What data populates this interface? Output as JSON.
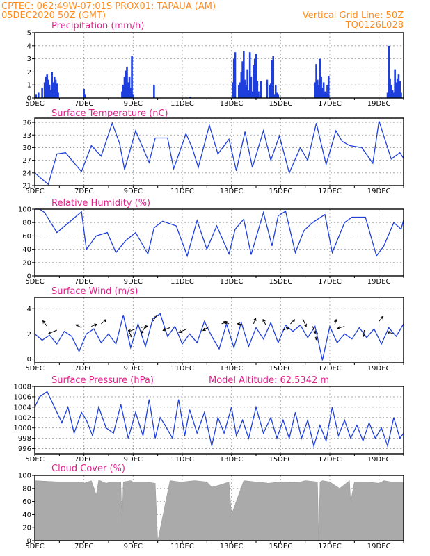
{
  "header": {
    "line1_left": "CPTEC:   062:49W-07:01S   PROX01: TAPAUA (AM)",
    "line2_left": "05DEC2020 50Z (GMT)",
    "line2_right": "Vertical Grid Line: 50Z",
    "line3_right": "TQ0126L028"
  },
  "colors": {
    "header": "#ff8a1c",
    "panel_title": "#e0208a",
    "series": "#1f3fdd",
    "cloud": "#aaaaaa",
    "wind_arrow": "#000000"
  },
  "x_labels": [
    "5DEC",
    "7DEC",
    "9DEC",
    "11DEC",
    "13DEC",
    "15DEC",
    "17DEC",
    "19DEC"
  ],
  "x_range_days": [
    5,
    20
  ],
  "chart_data": [
    {
      "id": "precip",
      "type": "bar",
      "title": "Precipitation (mm/h)",
      "ylim": [
        0,
        5
      ],
      "yticks": [
        "0",
        "1",
        "2",
        "3",
        "4",
        "5"
      ],
      "x": [
        5.05,
        5.15,
        5.3,
        5.4,
        5.45,
        5.5,
        5.55,
        5.6,
        5.65,
        5.7,
        5.75,
        5.8,
        5.85,
        5.9,
        5.95,
        7.0,
        7.05,
        8.55,
        8.6,
        8.65,
        8.7,
        8.75,
        8.8,
        8.85,
        8.9,
        8.95,
        9.0,
        9.85,
        11.3,
        13.05,
        13.1,
        13.15,
        13.3,
        13.35,
        13.4,
        13.45,
        13.5,
        13.55,
        13.6,
        13.65,
        13.7,
        13.75,
        13.8,
        13.85,
        13.9,
        13.95,
        14.0,
        14.05,
        14.1,
        14.2,
        14.45,
        14.55,
        14.6,
        14.65,
        14.7,
        14.75,
        14.8,
        14.85,
        14.9,
        16.4,
        16.45,
        16.5,
        16.55,
        16.6,
        16.65,
        16.7,
        16.75,
        16.8,
        16.85,
        16.9,
        16.95,
        19.35,
        19.4,
        19.45,
        19.5,
        19.55,
        19.6,
        19.65,
        19.7,
        19.75,
        19.8,
        19.85,
        19.9
      ],
      "values": [
        0.3,
        0.4,
        0.8,
        1.2,
        1.6,
        1.8,
        1.4,
        1.0,
        0.6,
        2.0,
        1.2,
        1.6,
        1.4,
        1.1,
        0.4,
        0.7,
        0.3,
        0.5,
        1.0,
        1.6,
        2.1,
        2.4,
        1.2,
        1.6,
        0.8,
        3.2,
        0.3,
        1.0,
        0.1,
        1.2,
        3.0,
        3.5,
        1.0,
        1.2,
        2.0,
        2.8,
        3.6,
        1.4,
        1.0,
        2.2,
        0.6,
        3.5,
        1.6,
        0.5,
        2.5,
        3.0,
        3.4,
        1.3,
        0.5,
        1.3,
        1.4,
        1.0,
        1.1,
        2.9,
        3.2,
        0.3,
        1.0,
        0.4,
        0.3,
        1.2,
        2.6,
        1.4,
        1.0,
        3.0,
        1.6,
        0.8,
        1.2,
        0.5,
        0.4,
        1.0,
        1.7,
        0.4,
        4.0,
        1.5,
        1.0,
        0.6,
        0.4,
        2.2,
        1.2,
        1.5,
        1.8,
        1.3,
        0.4
      ]
    },
    {
      "id": "temp",
      "type": "line",
      "title": "Surface Temperature (nC)",
      "ylim": [
        21,
        37
      ],
      "yticks": [
        "21",
        "24",
        "27",
        "30",
        "33",
        "36"
      ],
      "x": [
        5.0,
        5.3,
        5.55,
        5.9,
        6.25,
        6.9,
        7.3,
        7.7,
        8.15,
        8.45,
        8.65,
        9.1,
        9.65,
        9.9,
        10.4,
        10.65,
        11.15,
        11.4,
        11.65,
        12.1,
        12.45,
        12.9,
        13.2,
        13.55,
        13.85,
        14.3,
        14.6,
        14.95,
        15.35,
        15.8,
        16.1,
        16.45,
        16.85,
        17.25,
        17.5,
        17.8,
        18.3,
        18.75,
        19.0,
        19.5,
        19.85,
        20.0
      ],
      "values": [
        24.0,
        22.5,
        21.3,
        28.5,
        28.8,
        24.3,
        30.5,
        28.0,
        35.8,
        31.0,
        24.8,
        34.0,
        26.5,
        32.3,
        32.3,
        25.0,
        33.3,
        30.0,
        25.3,
        35.3,
        28.5,
        32.0,
        24.5,
        33.8,
        25.3,
        34.0,
        27.0,
        32.8,
        24.0,
        30.0,
        27.0,
        35.8,
        26.0,
        34.0,
        31.5,
        30.5,
        30.0,
        26.3,
        36.3,
        27.3,
        28.8,
        27.5
      ]
    },
    {
      "id": "rh",
      "type": "line",
      "title": "Relative Humidity (%)",
      "ylim": [
        0,
        100
      ],
      "yticks": [
        "0",
        "20",
        "40",
        "60",
        "80",
        "100"
      ],
      "x": [
        5.0,
        5.2,
        5.4,
        5.9,
        6.9,
        7.1,
        7.5,
        7.95,
        8.3,
        8.7,
        9.1,
        9.6,
        9.85,
        10.2,
        10.75,
        11.2,
        11.6,
        12.0,
        12.4,
        12.9,
        13.15,
        13.5,
        13.8,
        14.3,
        14.65,
        14.9,
        15.2,
        15.6,
        15.95,
        16.3,
        16.8,
        17.1,
        17.6,
        17.9,
        18.45,
        18.9,
        19.2,
        19.6,
        19.9,
        20.0
      ],
      "values": [
        100,
        100,
        95,
        65,
        96,
        40,
        60,
        65,
        35,
        53,
        65,
        33,
        72,
        82,
        75,
        30,
        83,
        40,
        75,
        33,
        70,
        85,
        32,
        95,
        45,
        90,
        97,
        35,
        68,
        80,
        92,
        35,
        80,
        88,
        88,
        30,
        45,
        80,
        70,
        84
      ]
    },
    {
      "id": "wind",
      "type": "line",
      "title": "Surface Wind (m/s)",
      "ylim": [
        -0.3,
        4.9
      ],
      "yticks": [
        "0",
        "2",
        "4"
      ],
      "x": [
        5.0,
        5.3,
        5.6,
        5.9,
        6.2,
        6.5,
        6.8,
        7.1,
        7.4,
        7.7,
        8.0,
        8.3,
        8.6,
        8.9,
        9.2,
        9.5,
        9.8,
        10.1,
        10.4,
        10.7,
        11.0,
        11.3,
        11.6,
        11.9,
        12.2,
        12.5,
        12.8,
        13.1,
        13.4,
        13.7,
        14.0,
        14.3,
        14.6,
        14.9,
        15.2,
        15.5,
        15.8,
        16.1,
        16.4,
        16.7,
        17.0,
        17.3,
        17.6,
        17.9,
        18.2,
        18.5,
        18.8,
        19.1,
        19.4,
        19.7,
        20.0
      ],
      "values": [
        2.0,
        1.5,
        1.9,
        1.2,
        2.2,
        1.8,
        0.6,
        2.0,
        2.4,
        1.3,
        2.0,
        1.2,
        3.5,
        0.9,
        2.8,
        1.0,
        3.2,
        3.6,
        1.8,
        2.6,
        1.2,
        2.0,
        1.3,
        3.0,
        1.8,
        0.8,
        2.8,
        0.9,
        2.9,
        1.0,
        2.5,
        1.6,
        2.9,
        1.3,
        2.7,
        2.2,
        2.7,
        1.7,
        2.6,
        -0.1,
        2.6,
        1.3,
        2.0,
        1.6,
        2.5,
        1.7,
        2.4,
        1.2,
        2.5,
        1.8,
        2.8
      ],
      "arrows": [
        {
          "x": 5.5,
          "y": 2.6,
          "dx": -6,
          "dy": -8
        },
        {
          "x": 5.9,
          "y": 2.3,
          "dx": -12,
          "dy": 5
        },
        {
          "x": 6.9,
          "y": 2.5,
          "dx": -8,
          "dy": -4
        },
        {
          "x": 7.3,
          "y": 2.6,
          "dx": 8,
          "dy": -3
        },
        {
          "x": 7.7,
          "y": 2.8,
          "dx": 7,
          "dy": -6
        },
        {
          "x": 8.8,
          "y": 2.3,
          "dx": 5,
          "dy": 10
        },
        {
          "x": 9.1,
          "y": 2.4,
          "dx": -10,
          "dy": 4
        },
        {
          "x": 9.3,
          "y": 2.5,
          "dx": 10,
          "dy": -2
        },
        {
          "x": 9.5,
          "y": 2.6,
          "dx": -6,
          "dy": 10
        },
        {
          "x": 9.8,
          "y": 3.0,
          "dx": 6,
          "dy": -9
        },
        {
          "x": 10.5,
          "y": 2.5,
          "dx": -10,
          "dy": 4
        },
        {
          "x": 11.2,
          "y": 2.4,
          "dx": -12,
          "dy": 5
        },
        {
          "x": 12.1,
          "y": 2.6,
          "dx": -9,
          "dy": 6
        },
        {
          "x": 12.6,
          "y": 2.8,
          "dx": 8,
          "dy": -3
        },
        {
          "x": 12.9,
          "y": 2.8,
          "dx": -8,
          "dy": -3
        },
        {
          "x": 13.5,
          "y": 2.7,
          "dx": -9,
          "dy": -2
        },
        {
          "x": 13.9,
          "y": 2.8,
          "dx": 3,
          "dy": -8
        },
        {
          "x": 14.4,
          "y": 2.7,
          "dx": -4,
          "dy": -8
        },
        {
          "x": 15.1,
          "y": 2.3,
          "dx": 8,
          "dy": -3
        },
        {
          "x": 15.4,
          "y": 2.8,
          "dx": 6,
          "dy": -6
        },
        {
          "x": 15.9,
          "y": 3.2,
          "dx": 5,
          "dy": 11
        },
        {
          "x": 16.3,
          "y": 2.6,
          "dx": 4,
          "dy": 10
        },
        {
          "x": 16.5,
          "y": 2.1,
          "dx": -2,
          "dy": 10
        },
        {
          "x": 17.2,
          "y": 2.7,
          "dx": 2,
          "dy": -8
        },
        {
          "x": 17.6,
          "y": 2.6,
          "dx": -10,
          "dy": 3
        },
        {
          "x": 18.4,
          "y": 2.3,
          "dx": -1,
          "dy": 9
        },
        {
          "x": 19.0,
          "y": 3.0,
          "dx": 6,
          "dy": -7
        },
        {
          "x": 19.6,
          "y": 2.0,
          "dx": -9,
          "dy": -3
        }
      ]
    },
    {
      "id": "pressure",
      "type": "line",
      "title": "Surface Pressure (hPa)",
      "subtitle": "Model Altitude: 62.5342  m",
      "ylim": [
        995,
        1008
      ],
      "yticks": [
        "996",
        "998",
        "1000",
        "1002",
        "1004",
        "1006",
        "1008"
      ],
      "x": [
        5.0,
        5.2,
        5.5,
        5.8,
        6.1,
        6.35,
        6.6,
        6.9,
        7.1,
        7.35,
        7.6,
        7.9,
        8.2,
        8.5,
        8.8,
        9.1,
        9.4,
        9.65,
        9.9,
        10.1,
        10.3,
        10.6,
        10.85,
        11.1,
        11.3,
        11.6,
        11.9,
        12.2,
        12.45,
        12.7,
        13.0,
        13.2,
        13.45,
        13.7,
        14.0,
        14.3,
        14.6,
        14.85,
        15.1,
        15.35,
        15.6,
        15.85,
        16.1,
        16.35,
        16.6,
        16.85,
        17.1,
        17.35,
        17.6,
        17.85,
        18.1,
        18.35,
        18.6,
        18.85,
        19.1,
        19.35,
        19.6,
        19.85,
        20.0
      ],
      "values": [
        1004.0,
        1006.0,
        1007.0,
        1004.0,
        1001.0,
        1004.0,
        999.0,
        1003.0,
        1001.5,
        998.5,
        1004.0,
        1000.0,
        999.0,
        1004.5,
        998.0,
        1003.0,
        998.5,
        1005.5,
        998.0,
        1002.0,
        1000.5,
        998.0,
        1005.5,
        998.5,
        1003.5,
        999.0,
        1003.0,
        996.5,
        1002.0,
        999.0,
        1004.0,
        998.5,
        1001.5,
        998.0,
        1004.0,
        999.0,
        1002.0,
        998.0,
        1001.5,
        998.0,
        1003.0,
        998.0,
        1001.5,
        996.5,
        1000.5,
        997.5,
        1004.0,
        998.5,
        1001.5,
        998.0,
        1000.5,
        997.5,
        1001.0,
        998.0,
        1000.0,
        996.5,
        1002.0,
        998.0,
        999.0
      ]
    },
    {
      "id": "cloud",
      "type": "area",
      "title": "Cloud Cover (%)",
      "ylim": [
        0,
        100
      ],
      "yticks": [
        "0",
        "20",
        "40",
        "60",
        "80",
        "100"
      ],
      "x": [
        5.0,
        5.5,
        6.0,
        6.5,
        6.9,
        7.0,
        7.3,
        7.5,
        7.6,
        7.9,
        8.1,
        8.5,
        8.55,
        8.6,
        8.9,
        9.0,
        9.5,
        9.9,
        10.0,
        10.5,
        10.9,
        11.0,
        11.5,
        12.0,
        12.2,
        12.5,
        12.9,
        13.0,
        13.5,
        14.0,
        14.1,
        14.5,
        15.0,
        15.5,
        15.8,
        16.0,
        16.5,
        16.55,
        16.6,
        16.7,
        17.0,
        17.4,
        17.8,
        17.85,
        18.0,
        18.5,
        19.0,
        19.2,
        19.5,
        20.0
      ],
      "values": [
        92,
        91,
        90,
        90,
        90,
        88,
        92,
        70,
        93,
        88,
        90,
        90,
        28,
        90,
        92,
        90,
        90,
        88,
        0,
        92,
        90,
        90,
        92,
        90,
        82,
        85,
        90,
        40,
        92,
        90,
        90,
        88,
        90,
        89,
        90,
        92,
        90,
        0,
        90,
        92,
        90,
        80,
        92,
        60,
        90,
        90,
        88,
        92,
        90,
        90
      ]
    }
  ]
}
